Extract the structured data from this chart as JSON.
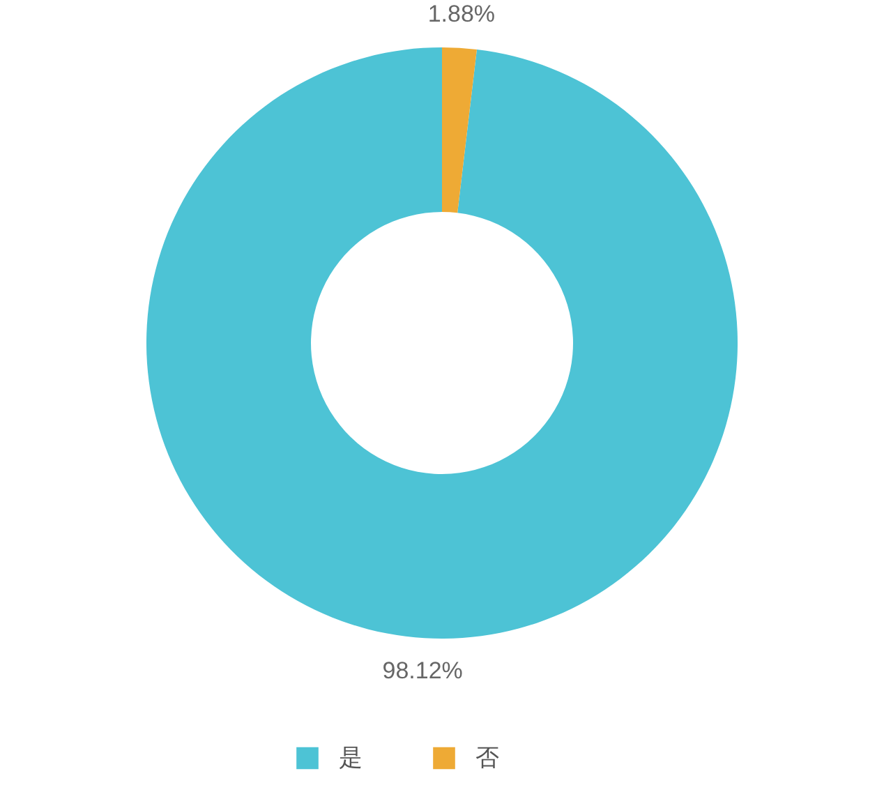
{
  "chart_data": {
    "type": "donut",
    "categories": [
      "是",
      "否"
    ],
    "values": [
      98.12,
      1.88
    ],
    "colors": [
      "#4dc3d5",
      "#eeaa35"
    ],
    "value_labels": [
      "98.12%",
      "1.88%"
    ],
    "legend": "bottom"
  }
}
